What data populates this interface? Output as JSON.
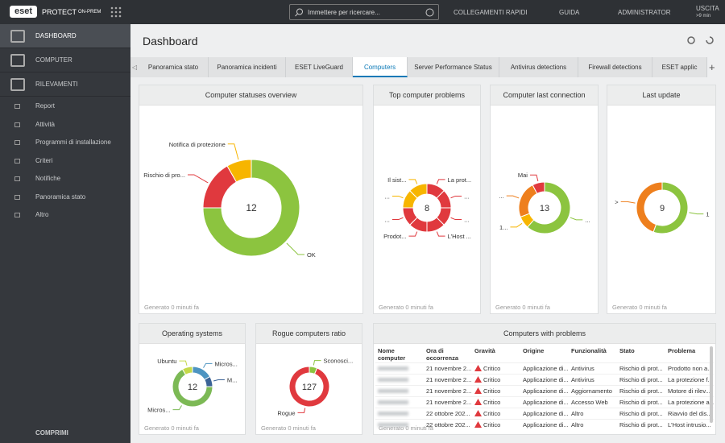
{
  "topbar": {
    "logo": "eset",
    "product": "PROTECT",
    "edition": "ON-PREM",
    "search_placeholder": "Immettere per ricercare...",
    "quick_links": "COLLEGAMENTI RAPIDI",
    "help": "GUIDA",
    "user": "ADMINISTRATOR",
    "logout": "USCITA",
    "logout_time": ">9 min"
  },
  "sidebar": {
    "main": [
      "DASHBOARD",
      "COMPUTER",
      "RILEVAMENTI"
    ],
    "active": 0,
    "items": [
      "Report",
      "Attività",
      "Programmi di installazione",
      "Criteri",
      "Notifiche",
      "Panoramica stato",
      "Altro"
    ],
    "collapse": "COMPRIMI"
  },
  "page": {
    "title": "Dashboard"
  },
  "tabs": [
    "Panoramica stato",
    "Panoramica incidenti",
    "ESET LiveGuard",
    "Computers",
    "Server Performance Status",
    "Antivirus detections",
    "Firewall detections",
    "ESET applic"
  ],
  "active_tab": 3,
  "widgets": [
    {
      "title": "Computer statuses overview",
      "footer": "Generato 0 minuti fa",
      "center": 12,
      "segments": [
        {
          "label": "OK",
          "value": 9,
          "color": "#8cc43f"
        },
        {
          "label": "Rischio di pro...",
          "value": 2,
          "color": "#e0393e"
        },
        {
          "label": "Notifica di protezione",
          "value": 1,
          "color": "#f7b500"
        }
      ]
    },
    {
      "title": "Top computer problems",
      "footer": "Generato 0 minuti fa",
      "center": 8,
      "segments": [
        {
          "label": "La prot...",
          "value": 1,
          "color": "#e0393e"
        },
        {
          "label": "...",
          "value": 1,
          "color": "#e0393e"
        },
        {
          "label": "...",
          "value": 1,
          "color": "#e0393e"
        },
        {
          "label": "L'Host ...",
          "value": 1,
          "color": "#e0393e"
        },
        {
          "label": "Prodot...",
          "value": 1,
          "color": "#e0393e"
        },
        {
          "label": "...",
          "value": 1,
          "color": "#e0393e"
        },
        {
          "label": "...",
          "value": 1,
          "color": "#f7b500"
        },
        {
          "label": "Il sist...",
          "value": 1,
          "color": "#f7b500"
        }
      ]
    },
    {
      "title": "Computer last connection",
      "footer": "Generato 0 minuti fa",
      "center": 13,
      "segments": [
        {
          "label": "...",
          "value": 8,
          "color": "#8cc43f"
        },
        {
          "label": "1...",
          "value": 1,
          "color": "#f7b500"
        },
        {
          "label": "...",
          "value": 3,
          "color": "#ee7f1d"
        },
        {
          "label": "Mai",
          "value": 1,
          "color": "#e0393e"
        }
      ]
    },
    {
      "title": "Last update",
      "footer": "Generato 0 minuti fa",
      "center": 9,
      "segments": [
        {
          "label": "1",
          "value": 5,
          "color": "#8cc43f"
        },
        {
          "label": ">",
          "value": 4,
          "color": "#ee7f1d"
        }
      ]
    },
    {
      "title": "Operating systems",
      "footer": "Generato 0 minuti fa",
      "center": 12,
      "segments": [
        {
          "label": "Micros...",
          "value": 2,
          "color": "#4d94c1"
        },
        {
          "label": "M...",
          "value": 1,
          "color": "#3b6396"
        },
        {
          "label": "Micros...",
          "value": 8,
          "color": "#7cb955"
        },
        {
          "label": "Ubuntu",
          "value": 1,
          "color": "#c5d94a"
        }
      ]
    },
    {
      "title": "Rogue computers ratio",
      "footer": "Generato 0 minuti fa",
      "center": 127,
      "segments": [
        {
          "label": "Sconosci...",
          "value": 8,
          "color": "#8cc43f"
        },
        {
          "label": "Rogue",
          "value": 119,
          "color": "#e0393e"
        }
      ]
    }
  ],
  "problems_table": {
    "title": "Computers with problems",
    "footer": "Generato 0 minuti fa",
    "columns": [
      "Nome computer",
      "Ora di occorrenza",
      "Gravità",
      "Origine",
      "Funzionalità",
      "Stato",
      "Problema"
    ],
    "rows": [
      [
        "21 novembre 2...",
        "Critico",
        "Applicazione di...",
        "Antivirus",
        "Rischio di prot...",
        "Prodotto non a..."
      ],
      [
        "21 novembre 2...",
        "Critico",
        "Applicazione di...",
        "Antivirus",
        "Rischio di prot...",
        "La protezione f..."
      ],
      [
        "21 novembre 2...",
        "Critico",
        "Applicazione di...",
        "Aggiornamento",
        "Rischio di prot...",
        "Motore di rilev..."
      ],
      [
        "21 novembre 2...",
        "Critico",
        "Applicazione di...",
        "Accesso Web",
        "Rischio di prot...",
        "La protezione a..."
      ],
      [
        "22 ottobre 202...",
        "Critico",
        "Applicazione di...",
        "Altro",
        "Rischio di prot...",
        "Riavvio del dis..."
      ],
      [
        "22 ottobre 202...",
        "Critico",
        "Applicazione di...",
        "Altro",
        "Rischio di prot...",
        "L'Host intrusio..."
      ]
    ]
  }
}
